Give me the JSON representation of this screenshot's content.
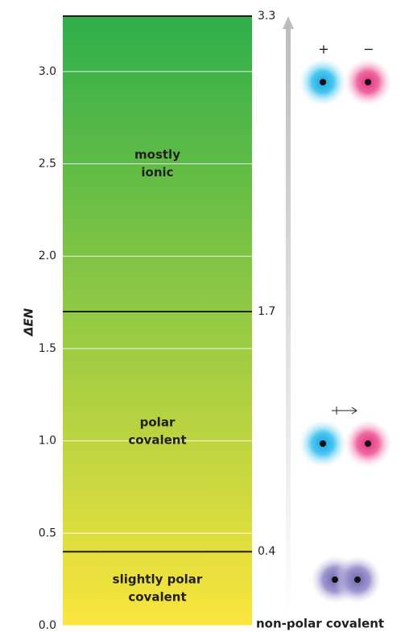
{
  "chart_data": {
    "type": "scale",
    "y_label": "ΔEN",
    "ylim": [
      0,
      3.3
    ],
    "yticks": [
      {
        "value": 0,
        "label": "0.0"
      },
      0.5,
      {
        "value": 1,
        "label": "1.0"
      },
      1.5,
      {
        "value": 2,
        "label": "2.0"
      },
      2.5,
      {
        "value": 3,
        "label": "3.0"
      }
    ],
    "grid": true,
    "colors": {
      "bottom": "#fbe53c",
      "top": "#2eae4a"
    },
    "boundaries": [
      0.4,
      1.7,
      3.3
    ],
    "regions": [
      {
        "lines": [
          "slightly polar",
          "covalent"
        ]
      },
      {
        "lines": [
          "polar",
          "covalent"
        ]
      },
      {
        "lines": [
          "mostly",
          "ionic"
        ]
      }
    ],
    "bottom_label": "non-polar covalent",
    "charges": {
      "positive": "+",
      "negative": "−"
    }
  }
}
